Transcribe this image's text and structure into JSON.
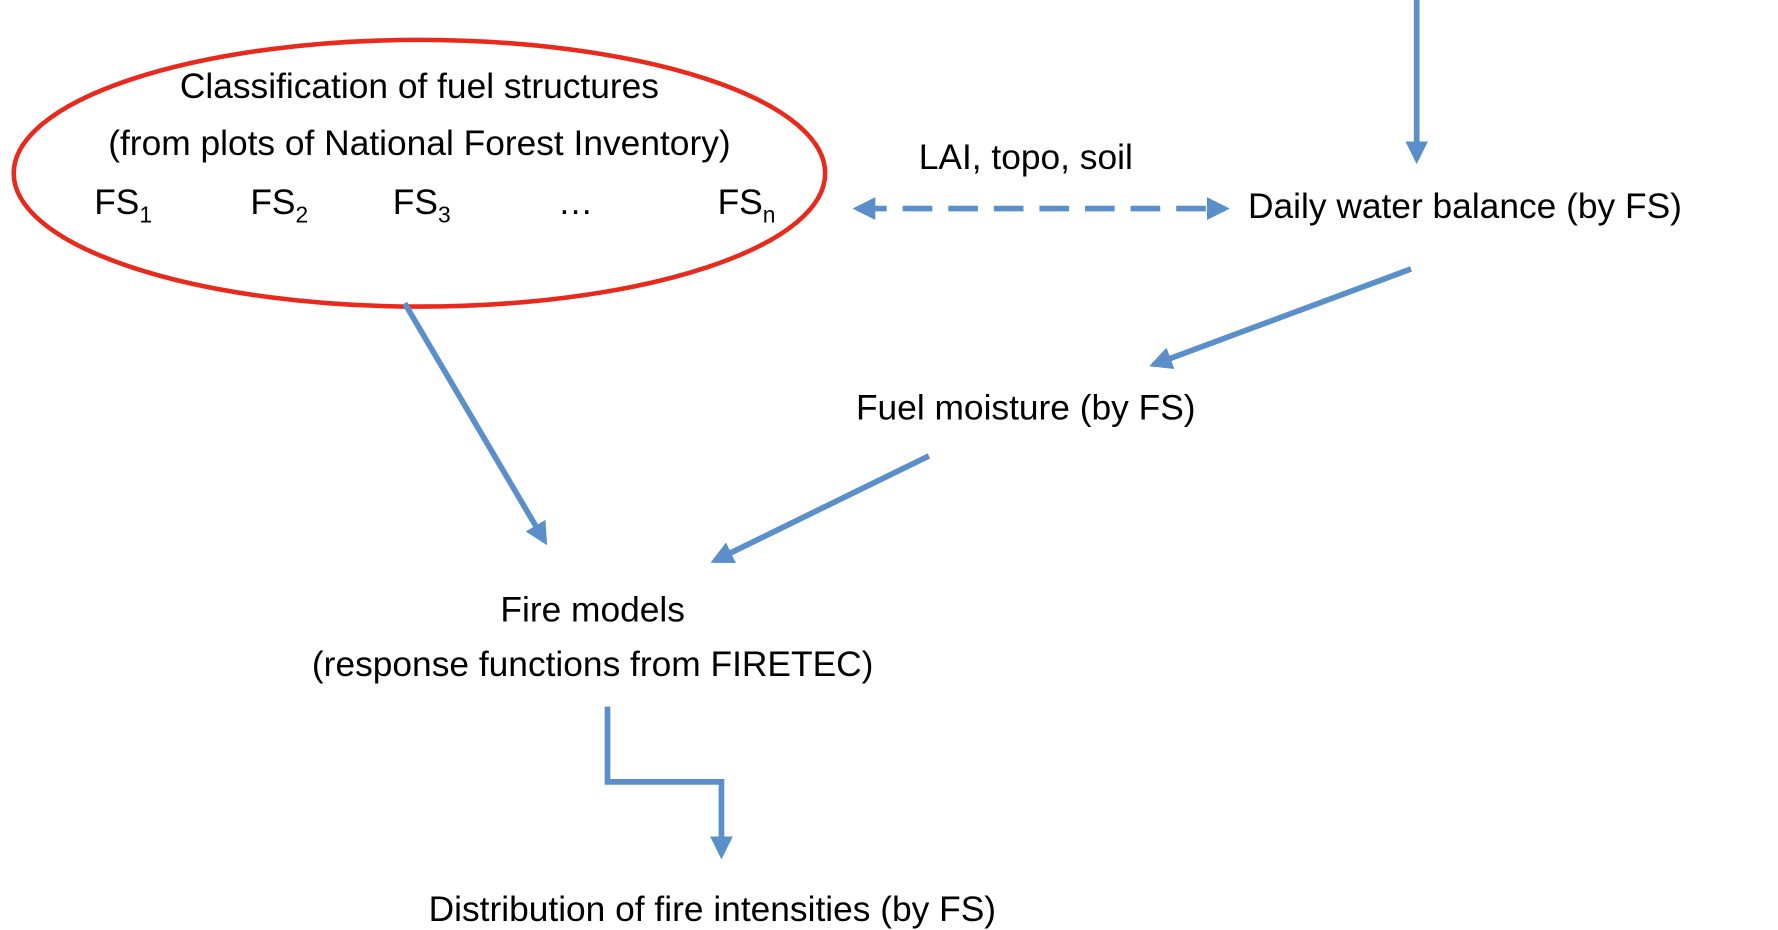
{
  "classification": {
    "title": "Classification of fuel structures",
    "subtitle": "(from plots of National Forest Inventory)",
    "structures": [
      {
        "base": "FS",
        "sub": "1"
      },
      {
        "base": "FS",
        "sub": "2"
      },
      {
        "base": "FS",
        "sub": "3"
      },
      {
        "base": "…",
        "sub": ""
      },
      {
        "base": "FS",
        "sub": "n"
      }
    ]
  },
  "link_label": "LAI, topo, soil",
  "nodes": {
    "water_balance": "Daily water balance (by FS)",
    "fuel_moisture": "Fuel moisture (by FS)",
    "fire_models": "Fire models",
    "fire_models_sub": "(response functions from FIRETEC)",
    "distribution": "Distribution of fire intensities (by FS)"
  }
}
